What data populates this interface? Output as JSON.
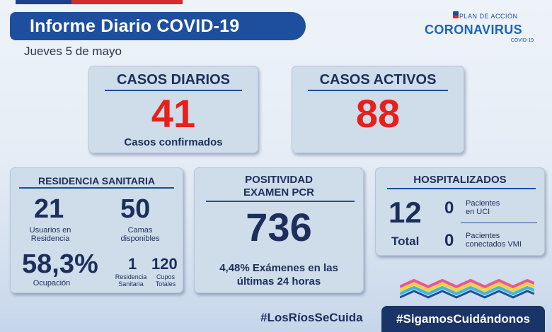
{
  "header": {
    "title": "Informe Diario COVID-19",
    "date": "Jueves 5 de mayo"
  },
  "logo": {
    "line1": "PLAN DE ACCIÓN",
    "line2": "CORONAVIRUS",
    "line3": "COVID-19"
  },
  "casos_diarios": {
    "title": "CASOS DIARIOS",
    "value": "41",
    "caption": "Casos confirmados"
  },
  "casos_activos": {
    "title": "CASOS ACTIVOS",
    "value": "88"
  },
  "residencia": {
    "title": "RESIDENCIA SANITARIA",
    "usuarios_value": "21",
    "usuarios_label_1": "Usuarios en",
    "usuarios_label_2": "Residencia",
    "camas_value": "50",
    "camas_label_1": "Camas",
    "camas_label_2": "disponibles",
    "ocupacion_value": "58,3%",
    "ocupacion_label": "Ocupación",
    "residencias_value": "1",
    "residencias_label_1": "Residencia",
    "residencias_label_2": "Sanitaria",
    "cupos_value": "120",
    "cupos_label_1": "Cupos",
    "cupos_label_2": "Totales"
  },
  "pcr": {
    "title_1": "POSITIVIDAD",
    "title_2": "EXAMEN PCR",
    "value": "736",
    "caption_1": "4,48% Exámenes en las",
    "caption_2": "últimas 24 horas"
  },
  "hospitalizados": {
    "title": "HOSPITALIZADOS",
    "total_value": "12",
    "total_label": "Total",
    "uci_value": "0",
    "uci_label_1": "Pacientes",
    "uci_label_2": "en UCI",
    "vmi_value": "0",
    "vmi_label_1": "Pacientes",
    "vmi_label_2": "conectados VMI"
  },
  "footer": {
    "hashtag_1": "#LosRíosSeCuida",
    "hashtag_2": "#SigamosCuidándonos"
  },
  "colors": {
    "title_blue": "#1d4f9e",
    "navy": "#1c2f5c",
    "accent_red": "#e8201a",
    "card_bg": "#cfdcea"
  }
}
